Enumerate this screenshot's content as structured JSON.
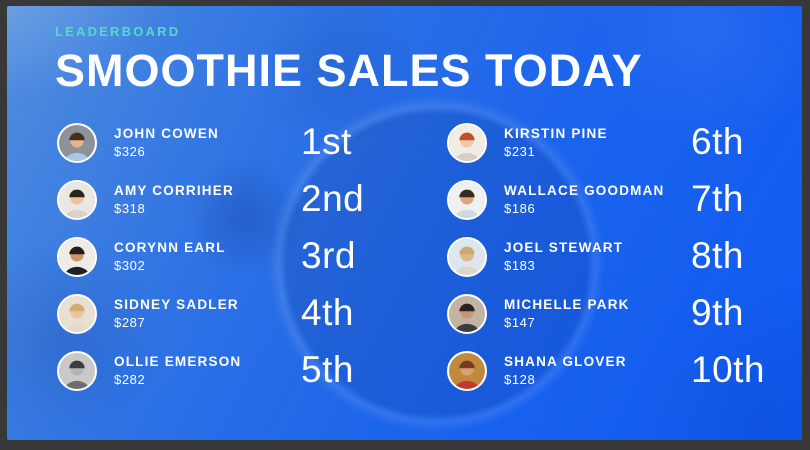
{
  "header": {
    "eyebrow": "LEADERBOARD",
    "title": "SMOOTHIE SALES TODAY"
  },
  "colors": {
    "accent_teal": "#52dcc2",
    "background_blue_light": "#4f8ddd",
    "background_blue_deep": "#0e59f2",
    "frame_dark": "#383838",
    "text_white": "#ffffff"
  },
  "entries": [
    {
      "name": "JOHN COWEN",
      "amount": "$326",
      "rank": "1st",
      "avatar": {
        "bg": "#8d9298",
        "hair": "#43301f",
        "skin": "#e6b48e",
        "shirt": "#a9c7e6"
      }
    },
    {
      "name": "AMY CORRIHER",
      "amount": "$318",
      "rank": "2nd",
      "avatar": {
        "bg": "#eae7e2",
        "hair": "#2b221c",
        "skin": "#edc29e",
        "shirt": "#d8d2c9"
      }
    },
    {
      "name": "CORYNN EARL",
      "amount": "$302",
      "rank": "3rd",
      "avatar": {
        "bg": "#efece7",
        "hair": "#241c18",
        "skin": "#cf9468",
        "shirt": "#1f1f24"
      }
    },
    {
      "name": "SIDNEY SADLER",
      "amount": "$287",
      "rank": "4th",
      "avatar": {
        "bg": "#e9dfd2",
        "hair": "#d4ad74",
        "skin": "#eec49e",
        "shirt": "#e3d9cc"
      }
    },
    {
      "name": "OLLIE EMERSON",
      "amount": "$282",
      "rank": "5th",
      "avatar": {
        "bg": "#c9c9c9",
        "hair": "#3c3c3c",
        "skin": "#b5b5b5",
        "shirt": "#6e6e6e"
      }
    },
    {
      "name": "KIRSTIN PINE",
      "amount": "$231",
      "rank": "6th",
      "avatar": {
        "bg": "#f1ece4",
        "hair": "#c2512b",
        "skin": "#f2c9a8",
        "shirt": "#d8cfc4"
      }
    },
    {
      "name": "WALLACE GOODMAN",
      "amount": "$186",
      "rank": "7th",
      "avatar": {
        "bg": "#eef0f1",
        "hair": "#352a20",
        "skin": "#d9a87e",
        "shirt": "#cfd8de"
      }
    },
    {
      "name": "JOEL STEWART",
      "amount": "$183",
      "rank": "8th",
      "avatar": {
        "bg": "#dde6ec",
        "hair": "#c9a96e",
        "skin": "#e0b68e",
        "shirt": "#dcd6ca"
      }
    },
    {
      "name": "MICHELLE PARK",
      "amount": "$147",
      "rank": "9th",
      "avatar": {
        "bg": "#c3b3a2",
        "hair": "#2a2220",
        "skin": "#c99671",
        "shirt": "#3b3b44"
      }
    },
    {
      "name": "SHANA GLOVER",
      "amount": "$128",
      "rank": "10th",
      "avatar": {
        "bg": "#c08a3e",
        "hair": "#7a3a22",
        "skin": "#d9a074",
        "shirt": "#c03a2e"
      }
    }
  ]
}
